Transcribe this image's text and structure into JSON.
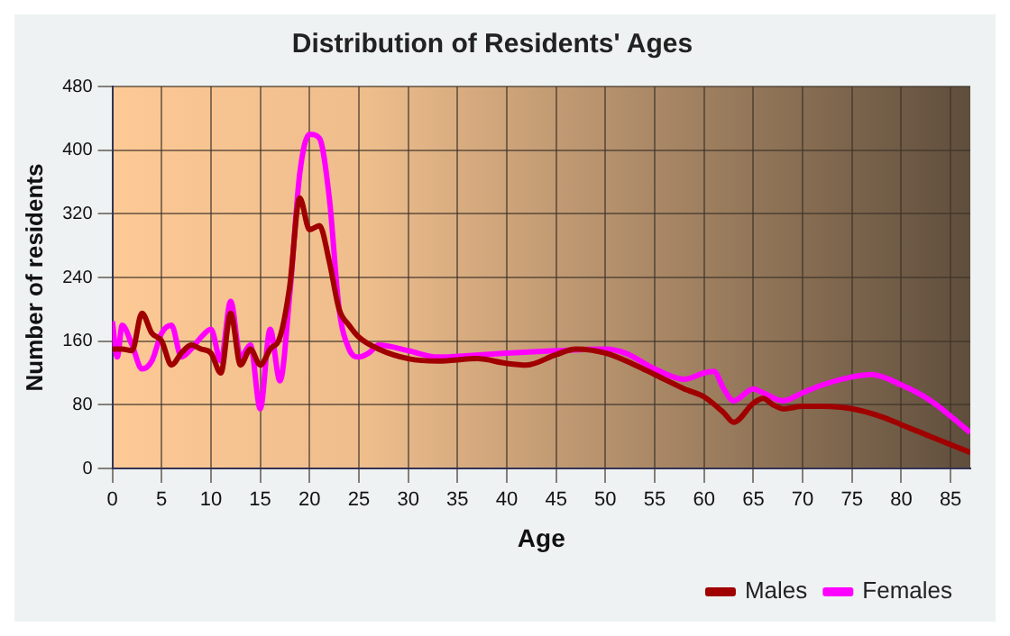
{
  "chart_data": {
    "type": "line",
    "title": "Distribution of Residents' Ages",
    "xlabel": "Age",
    "ylabel": "Number of residents",
    "series": [
      {
        "name": "Males",
        "color": "#a00000",
        "x": [
          0,
          1,
          2,
          3,
          4,
          5,
          6,
          7,
          8,
          9,
          10,
          11,
          12,
          13,
          14,
          15,
          16,
          17,
          18,
          19,
          20,
          21,
          22,
          23,
          24,
          25,
          27,
          30,
          33,
          37,
          40,
          42,
          45,
          47,
          50,
          53,
          55,
          58,
          60,
          62,
          63,
          65,
          66,
          67,
          68,
          70,
          72,
          75,
          78,
          80,
          83,
          87
        ],
        "values": [
          150,
          150,
          148,
          195,
          170,
          160,
          130,
          145,
          155,
          150,
          145,
          120,
          195,
          130,
          150,
          130,
          150,
          165,
          230,
          340,
          300,
          305,
          260,
          200,
          180,
          165,
          150,
          138,
          135,
          138,
          132,
          130,
          143,
          150,
          145,
          130,
          118,
          100,
          90,
          70,
          58,
          82,
          88,
          80,
          75,
          78,
          78,
          75,
          65,
          55,
          40,
          20
        ]
      },
      {
        "name": "Females",
        "color": "#ff00ff",
        "x": [
          0,
          0.5,
          1,
          2,
          3,
          4,
          5,
          6,
          7,
          8,
          9,
          10,
          11,
          12,
          13,
          14,
          15,
          16,
          17,
          18,
          19,
          20,
          21,
          22,
          23,
          24,
          25,
          26,
          27,
          30,
          33,
          40,
          45,
          50,
          52,
          55,
          58,
          60,
          61,
          62,
          63,
          65,
          66,
          68,
          70,
          72,
          75,
          77,
          80,
          83,
          87
        ],
        "values": [
          185,
          140,
          180,
          155,
          125,
          135,
          170,
          180,
          140,
          150,
          165,
          175,
          135,
          210,
          140,
          155,
          75,
          175,
          110,
          220,
          370,
          420,
          415,
          340,
          200,
          150,
          140,
          145,
          155,
          148,
          140,
          145,
          148,
          150,
          145,
          125,
          112,
          120,
          122,
          100,
          85,
          100,
          95,
          85,
          95,
          105,
          115,
          118,
          105,
          85,
          45
        ]
      }
    ],
    "xlim": [
      0,
      87
    ],
    "xticks": [
      0,
      5,
      10,
      15,
      20,
      25,
      30,
      35,
      40,
      45,
      50,
      55,
      60,
      65,
      70,
      75,
      80,
      85
    ],
    "ylim": [
      0,
      480
    ],
    "yticks": [
      0,
      80,
      160,
      240,
      320,
      400,
      480
    ],
    "grid": true,
    "legend": "bottom right",
    "marker": "none",
    "line_style": "solid"
  }
}
